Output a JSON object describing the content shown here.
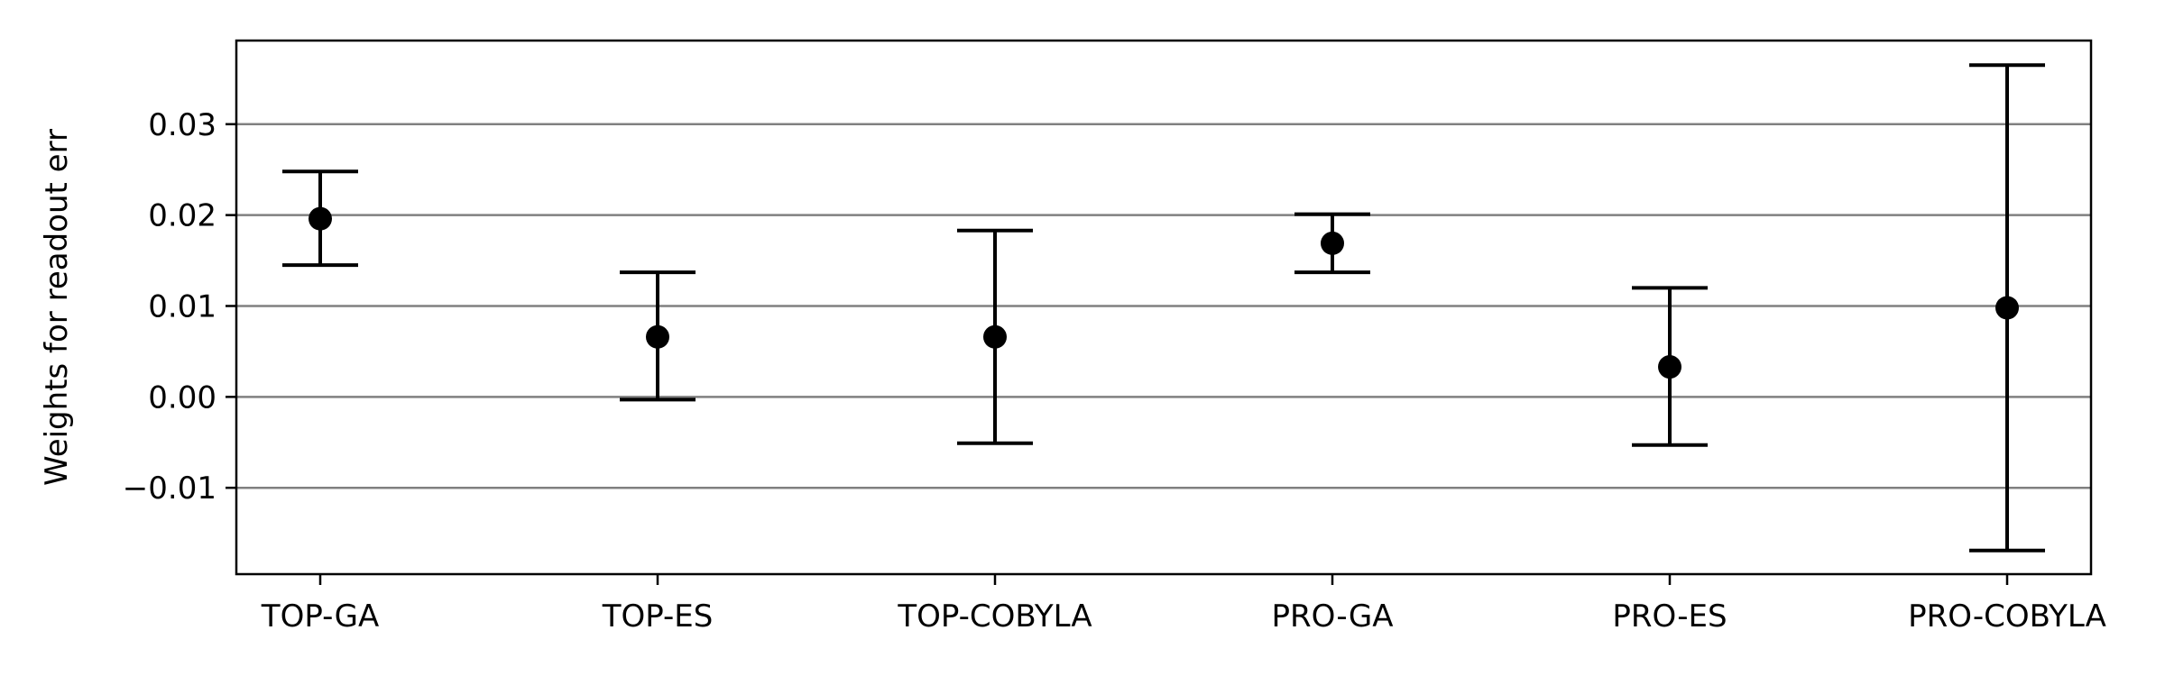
{
  "chart_data": {
    "type": "errorbar",
    "title": "",
    "xlabel": "",
    "ylabel": "Weights for readout err",
    "categories": [
      "TOP-GA",
      "TOP-ES",
      "TOP-COBYLA",
      "PRO-GA",
      "PRO-ES",
      "PRO-COBYLA"
    ],
    "values": [
      0.0196,
      0.0066,
      0.0066,
      0.0169,
      0.0033,
      0.0098
    ],
    "error_lower": [
      0.0145,
      -0.0003,
      -0.0051,
      0.0137,
      -0.0053,
      -0.0169
    ],
    "error_upper": [
      0.0248,
      0.0137,
      0.0183,
      0.0201,
      0.012,
      0.0365
    ],
    "ylim": [
      -0.0195,
      0.0392
    ],
    "yticks": [
      -0.01,
      0.0,
      0.01,
      0.02,
      0.03
    ],
    "ytick_labels": [
      "−0.01",
      "0.00",
      "0.01",
      "0.02",
      "0.03"
    ],
    "grid": "horizontal",
    "legend": "none",
    "colors": {
      "marker": "#000000",
      "errorbar": "#000000",
      "grid": "#808080",
      "axes": "#000000"
    }
  }
}
